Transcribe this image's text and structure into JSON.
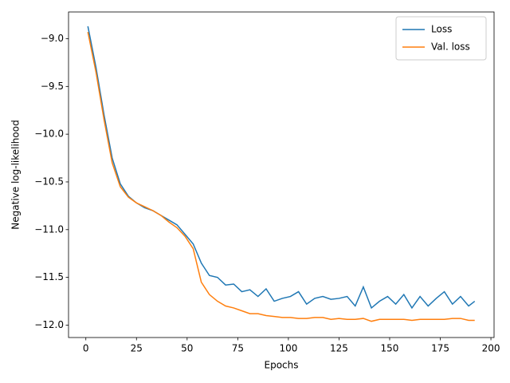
{
  "chart_data": {
    "type": "line",
    "x_label": "Epochs",
    "y_label": "Negative log-likelihood",
    "x": [
      1,
      5,
      9,
      13,
      17,
      21,
      25,
      29,
      33,
      37,
      41,
      45,
      49,
      53,
      57,
      61,
      65,
      69,
      73,
      77,
      81,
      85,
      89,
      93,
      97,
      101,
      105,
      109,
      113,
      117,
      121,
      125,
      129,
      133,
      137,
      141,
      145,
      149,
      153,
      157,
      161,
      165,
      169,
      173,
      177,
      181,
      185,
      189,
      192
    ],
    "series": [
      {
        "name": "Loss",
        "color": "#1f77b4",
        "values": [
          -8.87,
          -9.3,
          -9.8,
          -10.25,
          -10.52,
          -10.65,
          -10.72,
          -10.77,
          -10.8,
          -10.85,
          -10.9,
          -10.95,
          -11.05,
          -11.15,
          -11.35,
          -11.48,
          -11.5,
          -11.58,
          -11.57,
          -11.65,
          -11.63,
          -11.7,
          -11.62,
          -11.75,
          -11.72,
          -11.7,
          -11.65,
          -11.78,
          -11.72,
          -11.7,
          -11.73,
          -11.72,
          -11.7,
          -11.8,
          -11.6,
          -11.82,
          -11.75,
          -11.7,
          -11.78,
          -11.68,
          -11.82,
          -11.7,
          -11.8,
          -11.72,
          -11.65,
          -11.78,
          -11.7,
          -11.8,
          -11.75
        ]
      },
      {
        "name": "Val. loss",
        "color": "#ff7f0e",
        "values": [
          -8.93,
          -9.35,
          -9.85,
          -10.3,
          -10.55,
          -10.66,
          -10.72,
          -10.76,
          -10.8,
          -10.85,
          -10.92,
          -10.98,
          -11.07,
          -11.2,
          -11.55,
          -11.68,
          -11.75,
          -11.8,
          -11.82,
          -11.85,
          -11.88,
          -11.88,
          -11.9,
          -11.91,
          -11.92,
          -11.92,
          -11.93,
          -11.93,
          -11.92,
          -11.92,
          -11.94,
          -11.93,
          -11.94,
          -11.94,
          -11.93,
          -11.96,
          -11.94,
          -11.94,
          -11.94,
          -11.94,
          -11.95,
          -11.94,
          -11.94,
          -11.94,
          -11.94,
          -11.93,
          -11.93,
          -11.95,
          -11.95
        ]
      }
    ],
    "xlim": [
      -8.55,
      201.55
    ],
    "xticks": [
      0,
      25,
      50,
      75,
      100,
      125,
      150,
      175,
      200
    ],
    "ylim": [
      -12.13,
      -8.72
    ],
    "yticks": [
      {
        "value": -12.0,
        "label": "−12.0"
      },
      {
        "value": -11.5,
        "label": "−11.5"
      },
      {
        "value": -11.0,
        "label": "−11.0"
      },
      {
        "value": -10.5,
        "label": "−10.5"
      },
      {
        "value": -10.0,
        "label": "−10.0"
      },
      {
        "value": -9.5,
        "label": "−9.5"
      },
      {
        "value": -9.0,
        "label": "−9.0"
      }
    ],
    "grid": false,
    "legend": "upper-right"
  }
}
